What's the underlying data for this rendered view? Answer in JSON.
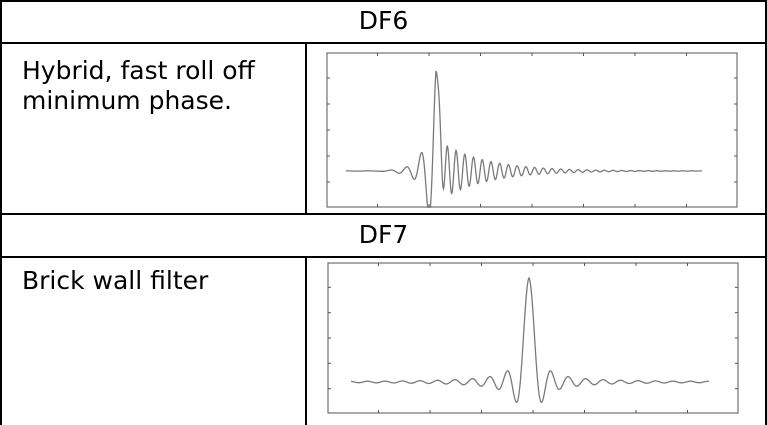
{
  "rows": [
    {
      "title": "DF6",
      "description": "Hybrid, fast roll off\nminimum phase.",
      "plot_icon": "minimum-phase-impulse-response"
    },
    {
      "title": "DF7",
      "description": "Brick wall filter",
      "plot_icon": "linear-phase-impulse-response"
    }
  ],
  "colors": {
    "border": "#000000",
    "plot_frame": "#555555",
    "trace": "#7a7a7a"
  }
}
